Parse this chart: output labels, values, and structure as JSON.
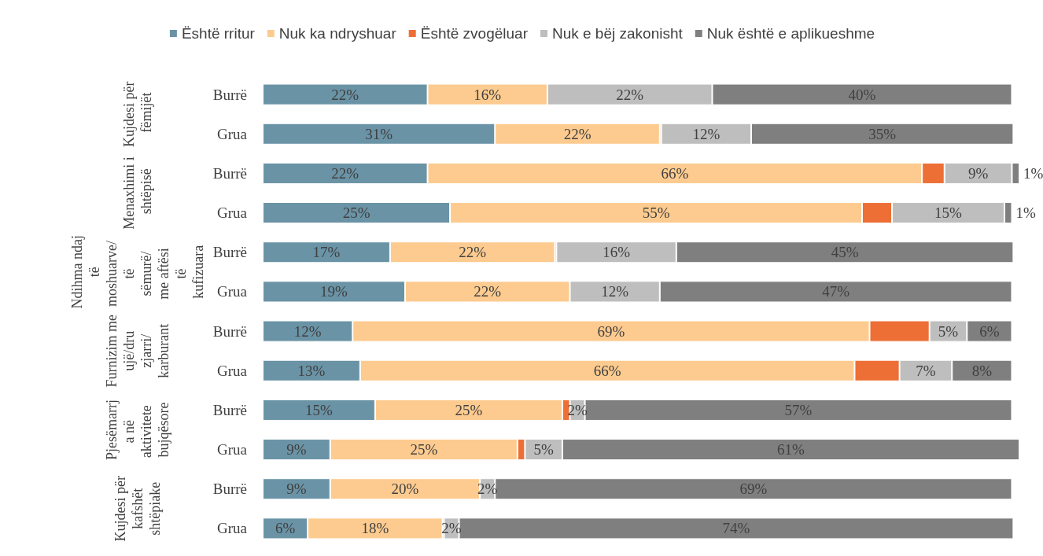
{
  "chart_data": {
    "type": "bar",
    "orientation": "horizontal",
    "stacked": true,
    "categories": [
      "Burrë",
      "Grua",
      "Burrë",
      "Grua",
      "Burrë",
      "Grua",
      "Burrë",
      "Grua",
      "Burrë",
      "Grua",
      "Burrë",
      "Grua"
    ],
    "annotations": [
      "Kujdesi për fëmijët",
      "Menaxhimi i shtëpisë",
      "Ndihma ndaj të moshuarve/ të sëmurë/ me aftësi të kufizuara",
      "Furnizim me ujë/dru zjarri/karburant",
      "Pjesëmarrja në aktivitete bujqësore",
      "Kujdesi për kafshët shtëpiake"
    ],
    "xlim": [
      0,
      101
    ],
    "tick_labels": "y",
    "grid": false,
    "legend": "top",
    "series": [
      {
        "name": "Është rritur",
        "color": "#6a93a6",
        "values": [
          22,
          31,
          22,
          25,
          17,
          19,
          12,
          13,
          15,
          9,
          9,
          6
        ],
        "value_labels": [
          "22%",
          "31%",
          "22%",
          "25%",
          "17%",
          "19%",
          "12%",
          "13%",
          "15%",
          "9%",
          "9%",
          "6%"
        ]
      },
      {
        "name": "Nuk ka ndryshuar",
        "color": "#fdcb8f",
        "values": [
          16,
          22,
          66,
          55,
          22,
          22,
          69,
          66,
          25,
          25,
          20,
          18
        ],
        "value_labels": [
          "16%",
          "22%",
          "66%",
          "55%",
          "22%",
          "22%",
          "69%",
          "66%",
          "25%",
          "25%",
          "20%",
          "18%"
        ]
      },
      {
        "name": "Është zvogëluar",
        "color": "#ed6f36",
        "values": [
          0,
          0.2,
          3,
          4,
          0.2,
          0,
          8,
          6,
          1,
          1,
          0,
          0.2
        ],
        "value_labels": [
          null,
          null,
          null,
          null,
          null,
          null,
          null,
          null,
          null,
          null,
          null,
          null
        ]
      },
      {
        "name": "Nuk e bëj zakonisht",
        "color": "#bebebe",
        "values": [
          22,
          12,
          9,
          15,
          16,
          12,
          5,
          7,
          2,
          5,
          2,
          2
        ],
        "value_labels": [
          "22%",
          "12%",
          "9%",
          "15%",
          "16%",
          "12%",
          "5%",
          "7%",
          "2%",
          "5%",
          "2%",
          "2%"
        ]
      },
      {
        "name": "Nuk është e aplikueshme",
        "color": "#7f7f7f",
        "values": [
          40,
          35,
          1,
          1,
          45,
          47,
          6,
          8,
          57,
          61,
          69,
          74
        ],
        "value_labels": [
          "40%",
          "35%",
          "1%",
          "1%",
          "45%",
          "47%",
          "6%",
          "8%",
          "57%",
          "61%",
          "69%",
          "74%"
        ]
      }
    ]
  }
}
